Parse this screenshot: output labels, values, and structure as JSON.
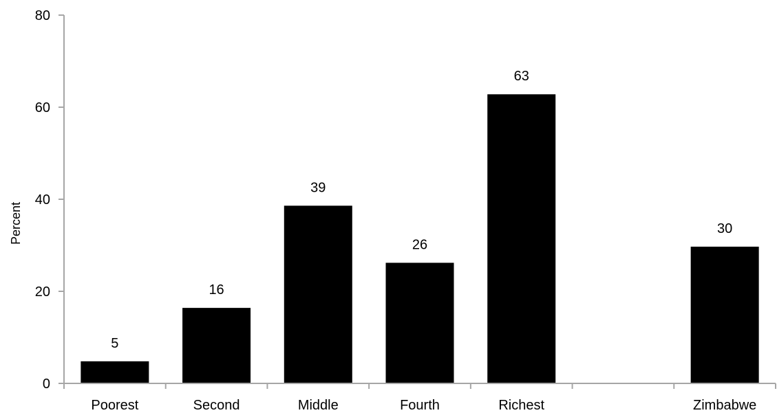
{
  "chart_data": {
    "type": "bar",
    "title": "",
    "xlabel": "",
    "ylabel": "Percent",
    "ylim": [
      0,
      80
    ],
    "yticks": [
      0,
      20,
      40,
      60,
      80
    ],
    "categories": [
      "Poorest",
      "Second",
      "Middle",
      "Fourth",
      "Richest",
      "",
      "Zimbabwe"
    ],
    "values": [
      4.8,
      16.4,
      38.6,
      26.2,
      62.8,
      null,
      29.7
    ],
    "data_labels": [
      "5",
      "16",
      "39",
      "26",
      "63",
      "",
      "30"
    ],
    "bar_color": "#000000",
    "axis_color": "#a6a6a6",
    "grid": false,
    "legend": "none"
  }
}
